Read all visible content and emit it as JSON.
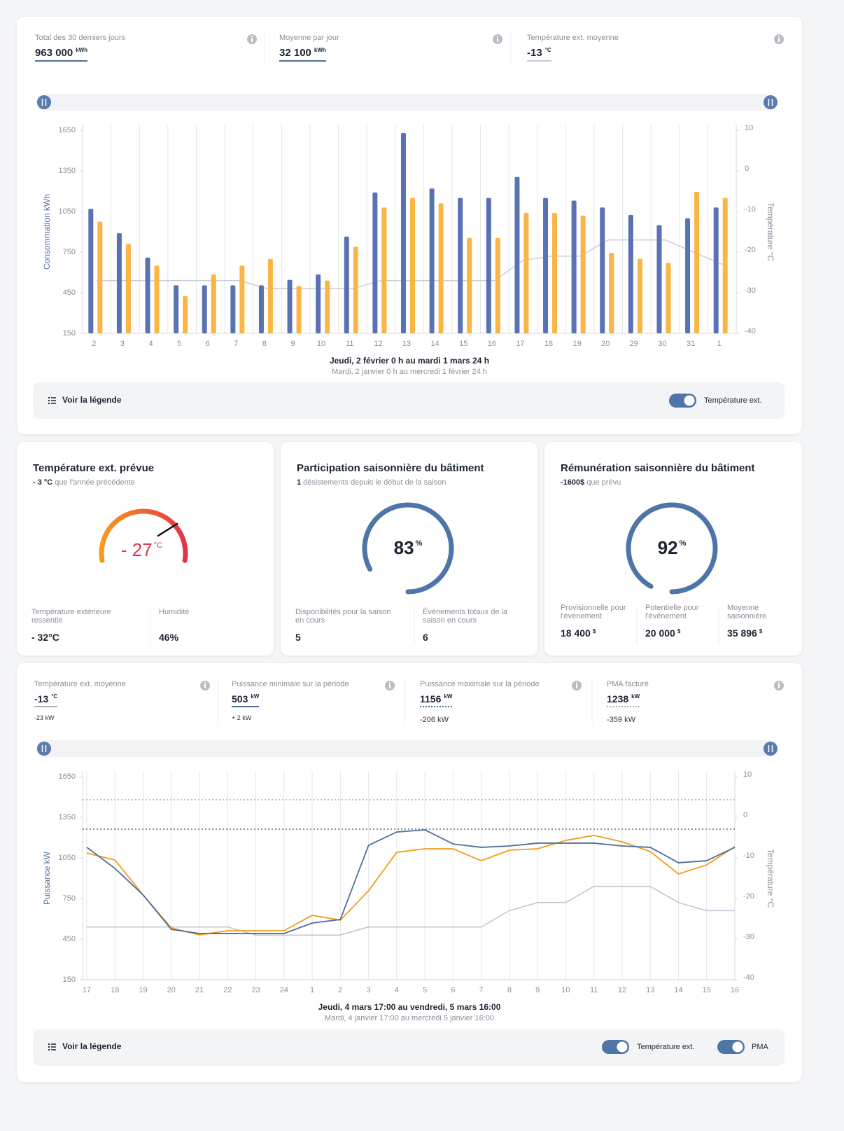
{
  "overview": [
    {
      "label": "Total des 30 derniers jours",
      "value": "963 000",
      "unit": "kWh"
    },
    {
      "label": "Moyenne par jour",
      "value": "32 100",
      "unit": "kWh"
    },
    {
      "label": "Température ext. moyenne",
      "value": "-13",
      "unit": "°C"
    }
  ],
  "chart_data": [
    {
      "type": "bar",
      "categories": [
        "2",
        "3",
        "4",
        "5",
        "6",
        "7",
        "8",
        "9",
        "10",
        "11",
        "12",
        "13",
        "14",
        "15",
        "16",
        "17",
        "18",
        "19",
        "20",
        "29",
        "30",
        "31",
        "1"
      ],
      "series": [
        {
          "color": "#5872b4",
          "values": [
            1070,
            890,
            710,
            505,
            505,
            505,
            505,
            545,
            585,
            865,
            1190,
            1630,
            1220,
            1150,
            1150,
            1305,
            1150,
            1130,
            1080,
            1025,
            950,
            1000,
            1080
          ]
        },
        {
          "color": "#fbb545",
          "values": [
            975,
            810,
            650,
            425,
            585,
            650,
            700,
            500,
            540,
            790,
            1080,
            1150,
            1110,
            855,
            855,
            1040,
            1040,
            1020,
            745,
            700,
            670,
            1195,
            1150
          ]
        },
        {
          "color": "#c9cdd3",
          "axis": "y2",
          "values": [
            -27,
            -27,
            -27,
            -27,
            -27,
            -27,
            -29,
            -29,
            -29,
            -29,
            -27,
            -27,
            -27,
            -27,
            -27,
            -22,
            -21,
            -21,
            -17,
            -17,
            -17,
            -20,
            -23
          ]
        }
      ],
      "ylabel": "Consommation kWh",
      "y2label": "Température °C",
      "ylim": [
        150,
        1650
      ],
      "yticks": [
        150,
        450,
        750,
        1050,
        1350,
        1650
      ],
      "y2lim": [
        -40,
        10
      ],
      "y2ticks": [
        -40,
        -30,
        -20,
        -10,
        0,
        10
      ],
      "caption": "Jeudi, 2 février 0 h au mardi 1 mars 24 h",
      "subcaption": "Mardi, 2 janvier 0 h au mercredi 1 février 24 h",
      "legend_button": "Voir la légende",
      "toggles": [
        "Température ext."
      ]
    },
    {
      "type": "line",
      "categories": [
        "17",
        "18",
        "19",
        "20",
        "21",
        "22",
        "23",
        "24",
        "1",
        "2",
        "3",
        "4",
        "5",
        "6",
        "7",
        "8",
        "9",
        "10",
        "11",
        "12",
        "13",
        "14",
        "15",
        "16"
      ],
      "series": [
        {
          "color": "#4f6e9a",
          "values": [
            1128,
            972,
            776,
            522,
            491,
            491,
            491,
            491,
            569,
            595,
            1143,
            1241,
            1257,
            1153,
            1128,
            1138,
            1159,
            1159,
            1159,
            1138,
            1128,
            1014,
            1029,
            1128
          ]
        },
        {
          "color": "#f39c1a",
          "values": [
            1086,
            1034,
            776,
            533,
            481,
            512,
            512,
            512,
            626,
            590,
            807,
            1091,
            1117,
            1117,
            1029,
            1107,
            1117,
            1179,
            1216,
            1169,
            1097,
            931,
            998,
            1133
          ]
        },
        {
          "color": "#bcc4d0",
          "axis": "y2",
          "values": [
            -27,
            -27,
            -27,
            -27,
            -27,
            -27,
            -29,
            -29,
            -29,
            -29,
            -27,
            -27,
            -27,
            -27,
            -27,
            -23,
            -21,
            -21,
            -17,
            -17,
            -17,
            -21,
            -23,
            -23
          ]
        }
      ],
      "hlines": [
        {
          "value": 1479,
          "color": "#9aa7bd"
        },
        {
          "value": 1262,
          "color": "#4f6e9a"
        }
      ],
      "ylabel": "Puissance kW",
      "y2label": "Température °C",
      "ylim": [
        150,
        1650
      ],
      "yticks": [
        150,
        450,
        750,
        1050,
        1350,
        1650
      ],
      "y2lim": [
        -40,
        10
      ],
      "y2ticks": [
        -40,
        -30,
        -20,
        -10,
        0,
        10
      ],
      "caption": "Jeudi, 4 mars 17:00 au vendredi, 5 mars 16:00",
      "subcaption": "Mardi, 4 janvier 17:00 au mercredi 5 janvier 16:00",
      "legend_button": "Voir la légende",
      "toggles": [
        "Température ext.",
        "PMA"
      ]
    }
  ],
  "cards": [
    {
      "title": "Température ext. prévue",
      "note_value": "- 3 °C",
      "note": "que l'année précédente",
      "gauge_value": "- 27",
      "gauge_unit": "°C",
      "stats": [
        {
          "label": "Température extérieure ressentie",
          "value": "- 32°C"
        },
        {
          "label": "Humidité",
          "value": "46%"
        }
      ]
    },
    {
      "title": "Participation saisonnière du bâtiment",
      "note_value": "1",
      "note": "désistements depuis le début de la saison",
      "value": 83,
      "unit": "%",
      "stats": [
        {
          "label": "Disponibilités pour la saison en cours",
          "value": "5"
        },
        {
          "label": "Événements totaux de la saison en cours",
          "value": "6"
        }
      ]
    },
    {
      "title": "Rémunération saisonnière du bâtiment",
      "note_value": "-1600$",
      "note": "que prévu",
      "value": 92,
      "unit": "%",
      "stats": [
        {
          "label": "Provisionnelle pour l'événement",
          "value": "18 400",
          "unit": "$"
        },
        {
          "label": "Potentielle pour l'événement",
          "value": "20 000",
          "unit": "$"
        },
        {
          "label": "Moyenne saisonnière",
          "value": "35 896",
          "unit": "$"
        }
      ]
    }
  ],
  "power_stats": [
    {
      "label": "Température ext. moyenne",
      "value": "-13",
      "unit": "°C",
      "delta": "-23 kW"
    },
    {
      "label": "Puissance minimale sur la période",
      "value": "503",
      "unit": "kW",
      "delta": "+ 2 kW"
    },
    {
      "label": "Puissance maximale sur la période",
      "value": "1156",
      "unit": "kW",
      "delta": "-206 kW"
    },
    {
      "label": "PMA facturé",
      "value": "1238",
      "unit": "kW",
      "delta": "-359 kW"
    }
  ]
}
